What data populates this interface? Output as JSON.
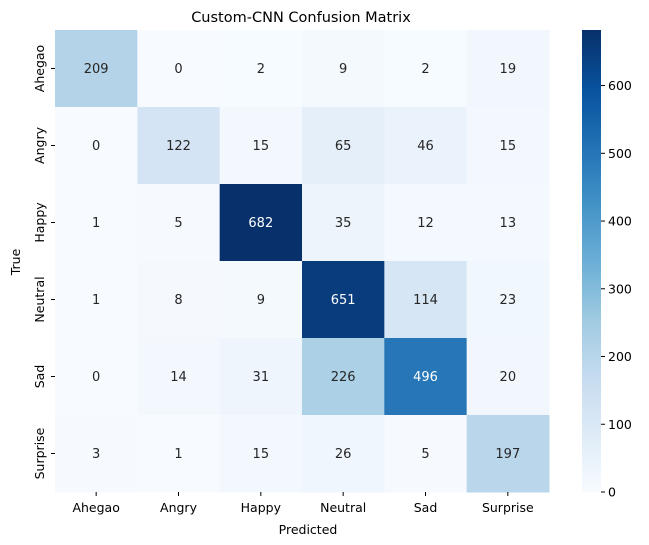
{
  "chart_data": {
    "type": "heatmap",
    "title": "Custom-CNN Confusion Matrix",
    "xlabel": "Predicted",
    "ylabel": "True",
    "x_categories": [
      "Ahegao",
      "Angry",
      "Happy",
      "Neutral",
      "Sad",
      "Surprise"
    ],
    "y_categories": [
      "Ahegao",
      "Angry",
      "Happy",
      "Neutral",
      "Sad",
      "Surprise"
    ],
    "values": [
      [
        209,
        0,
        2,
        9,
        2,
        19
      ],
      [
        0,
        122,
        15,
        65,
        46,
        15
      ],
      [
        1,
        5,
        682,
        35,
        12,
        13
      ],
      [
        1,
        8,
        9,
        651,
        114,
        23
      ],
      [
        0,
        14,
        31,
        226,
        496,
        20
      ],
      [
        3,
        1,
        15,
        26,
        5,
        197
      ]
    ],
    "colormap": "Blues",
    "vmin": 0,
    "vmax": 682,
    "colorbar_ticks": [
      0,
      100,
      200,
      300,
      400,
      500,
      600
    ],
    "annotations": true
  }
}
